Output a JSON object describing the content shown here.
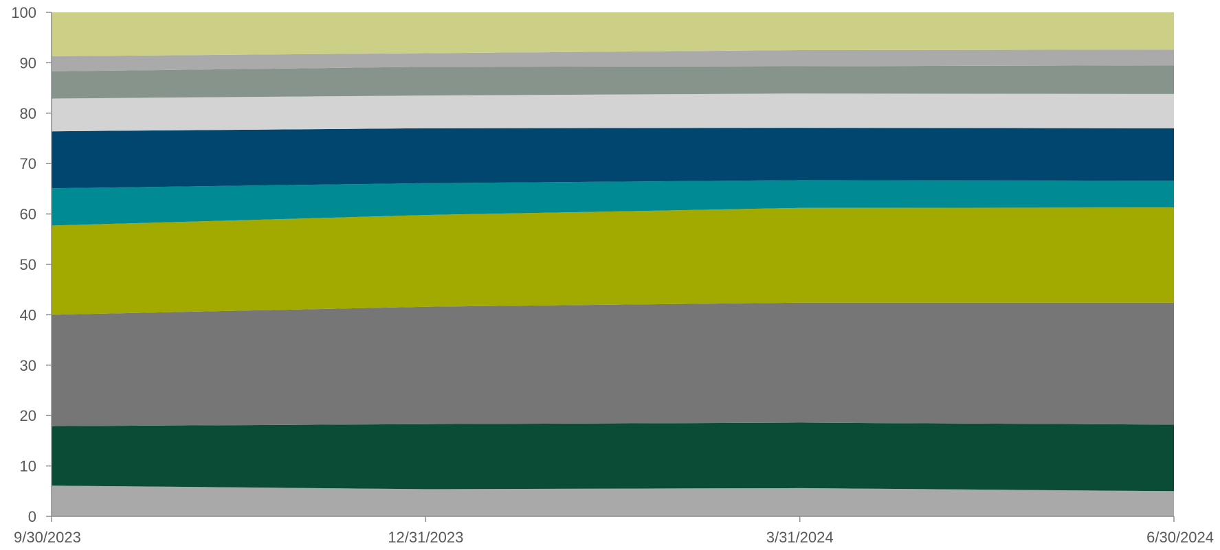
{
  "chart_data": {
    "type": "area",
    "stacked": true,
    "x": [
      "9/30/2023",
      "12/31/2023",
      "3/31/2024",
      "6/30/2024"
    ],
    "ylim": [
      0,
      100
    ],
    "yticks": [
      0,
      10,
      20,
      30,
      40,
      50,
      60,
      70,
      80,
      90,
      100
    ],
    "grid": false,
    "legend": "none",
    "series": [
      {
        "color": "#a9a9a9",
        "values": [
          6.1,
          5.4,
          5.6,
          5.0
        ]
      },
      {
        "color": "#0b4c37",
        "values": [
          11.8,
          12.9,
          13.0,
          13.2
        ]
      },
      {
        "color": "#767676",
        "values": [
          22.1,
          23.3,
          23.8,
          24.2
        ]
      },
      {
        "color": "#a2aa00",
        "values": [
          17.7,
          18.2,
          18.8,
          18.9
        ]
      },
      {
        "color": "#008b94",
        "values": [
          7.4,
          6.3,
          5.5,
          5.3
        ]
      },
      {
        "color": "#00466f",
        "values": [
          11.3,
          10.9,
          10.4,
          10.4
        ]
      },
      {
        "color": "#d3d3d3",
        "values": [
          6.5,
          6.5,
          6.8,
          6.8
        ]
      },
      {
        "color": "#86948b",
        "values": [
          5.4,
          5.7,
          5.4,
          5.7
        ]
      },
      {
        "color": "#aaaaaa",
        "values": [
          3.0,
          2.7,
          3.2,
          3.1
        ]
      },
      {
        "color": "#ccd087",
        "values": [
          8.7,
          8.1,
          7.5,
          7.4
        ]
      }
    ]
  }
}
